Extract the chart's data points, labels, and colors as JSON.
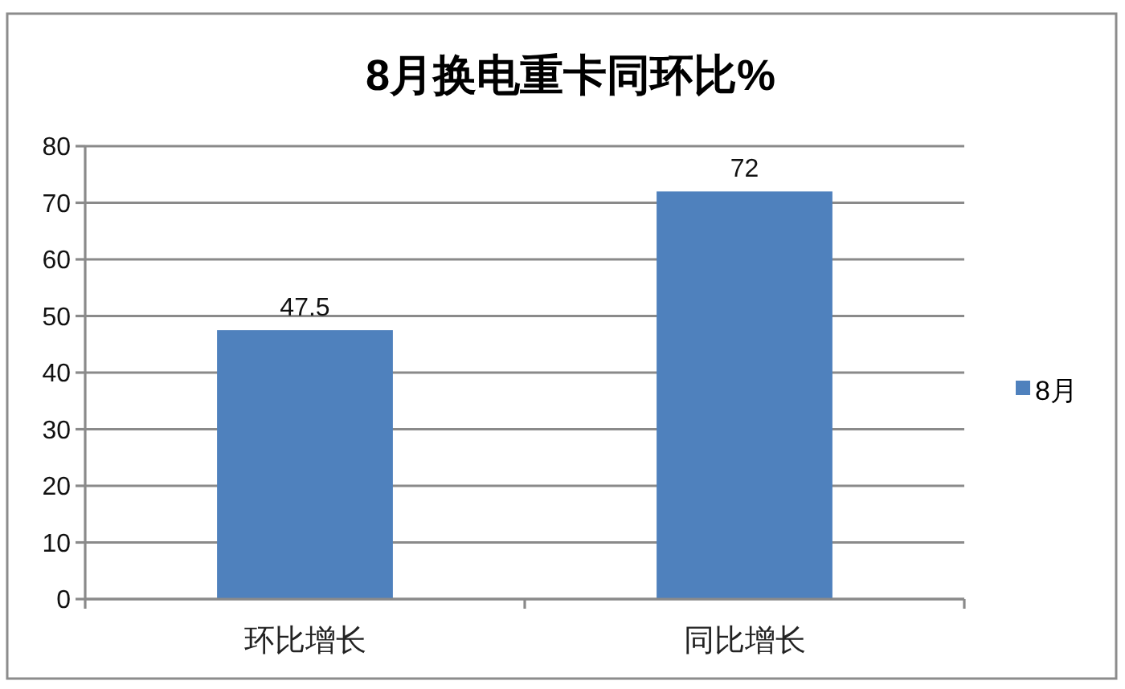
{
  "chart_data": {
    "type": "bar",
    "title": "8月换电重卡同环比%",
    "categories": [
      "环比增长",
      "同比增长"
    ],
    "series": [
      {
        "name": "8月",
        "color": "#4f81bd",
        "values": [
          47.5,
          72
        ]
      }
    ],
    "ylim": [
      0,
      80
    ],
    "yticks": [
      0,
      10,
      20,
      30,
      40,
      50,
      60,
      70,
      80
    ],
    "grid": "y",
    "legend": "right",
    "data_labels": true
  }
}
